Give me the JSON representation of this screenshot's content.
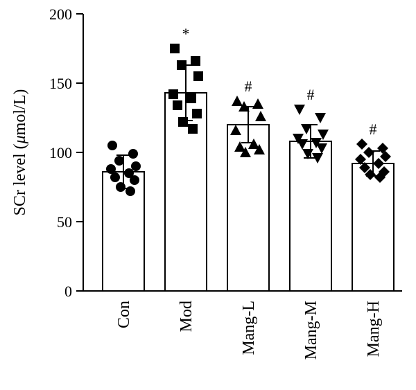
{
  "chart_data": {
    "type": "bar",
    "ylabel_prefix": "SCr level (",
    "ylabel_mu": "μ",
    "ylabel_suffix": "mol/L)",
    "ylim": [
      0,
      200
    ],
    "yticks": [
      0,
      50,
      100,
      150,
      200
    ],
    "categories": [
      "Con",
      "Mod",
      "Mang-L",
      "Mang-M",
      "Mang-H"
    ],
    "values": [
      86,
      143,
      120,
      108,
      92
    ],
    "error": [
      12,
      20,
      13,
      12,
      9
    ],
    "significance": [
      "",
      "*",
      "#",
      "#",
      "#"
    ],
    "markers": [
      "circle",
      "square",
      "triangle-up",
      "triangle-down",
      "diamond"
    ],
    "points": [
      [
        105,
        99,
        94,
        90,
        88,
        85,
        82,
        80,
        75,
        72
      ],
      [
        175,
        166,
        163,
        155,
        142,
        139,
        134,
        128,
        122,
        117
      ],
      [
        137,
        135,
        133,
        126,
        116,
        106,
        104,
        102,
        100
      ],
      [
        131,
        125,
        117,
        113,
        110,
        107,
        106,
        103,
        99,
        96
      ],
      [
        106,
        103,
        100,
        97,
        95,
        92,
        89,
        86,
        84,
        82
      ]
    ]
  }
}
